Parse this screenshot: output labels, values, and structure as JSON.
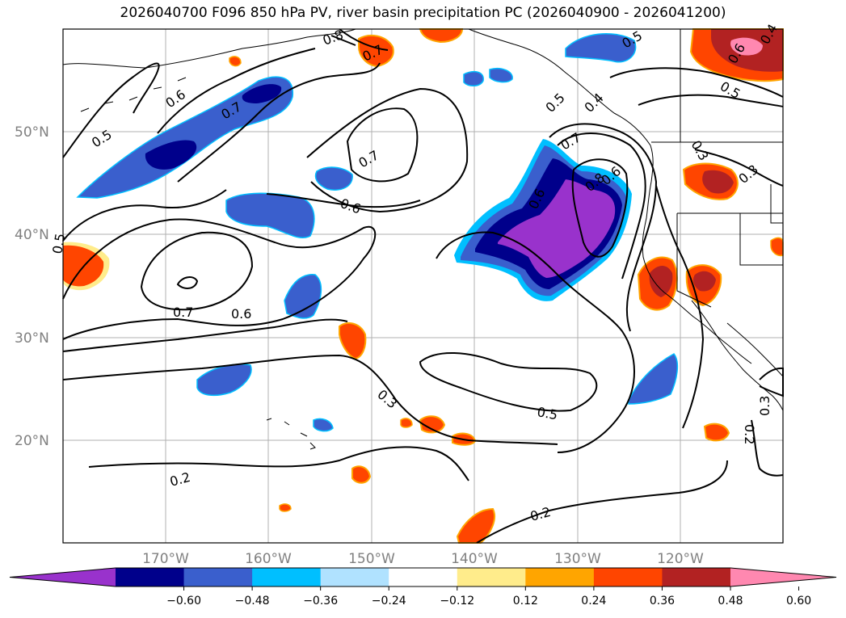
{
  "title": "2026040700 F096 850 hPa PV, river basin precipitation PC (2026040900 - 2026041200)",
  "lat_labels": [
    "50°N",
    "40°N",
    "30°N",
    "20°N"
  ],
  "lon_labels": [
    "170°W",
    "160°W",
    "150°W",
    "140°W",
    "130°W",
    "120°W"
  ],
  "colorbar": {
    "ticks": [
      "−0.60",
      "−0.48",
      "−0.36",
      "−0.24",
      "−0.12",
      "0.12",
      "0.24",
      "0.36",
      "0.48",
      "0.60"
    ],
    "colors": [
      "#9932cc",
      "#00008b",
      "#3a5fcd",
      "#00bfff",
      "#b0e2ff",
      "#ffffff",
      "#ffec8b",
      "#ffa500",
      "#ff4500",
      "#b22222",
      "#ff88b0"
    ]
  },
  "contour_labels": [
    "0.5",
    "0.6",
    "0.7",
    "0.8",
    "0.7",
    "0.6",
    "0.7",
    "0.5",
    "0.6",
    "0.7",
    "0.6",
    "0.7",
    "0.8",
    "0.6",
    "0.5",
    "0.4",
    "0.5",
    "0.3",
    "0.3",
    "0.2",
    "0.3",
    "0.5",
    "0.2",
    "0.2",
    "0.3",
    "0.6",
    "0.5",
    "0.4"
  ]
}
